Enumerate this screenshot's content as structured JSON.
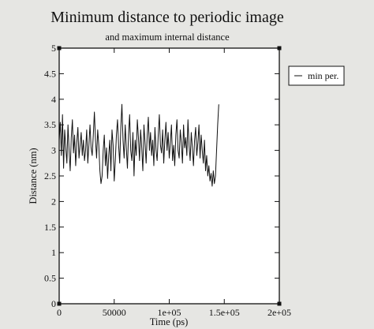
{
  "chart_data": {
    "type": "line",
    "title": "Minimum distance to periodic image",
    "subtitle": "and maximum internal distance",
    "xlabel": "Time (ps)",
    "ylabel": "Distance (nm)",
    "xlim": [
      0,
      200000
    ],
    "ylim": [
      0,
      5
    ],
    "x_ticks": [
      0,
      50000,
      100000,
      150000,
      200000
    ],
    "x_tick_labels": [
      "0",
      "50000",
      "1e+05",
      "1.5e+05",
      "2e+05"
    ],
    "y_ticks": [
      0,
      0.5,
      1,
      1.5,
      2,
      2.5,
      3,
      3.5,
      4,
      4.5,
      5
    ],
    "y_tick_labels": [
      "0",
      "0.5",
      "1",
      "1.5",
      "2",
      "2.5",
      "3",
      "3.5",
      "4",
      "4.5",
      "5"
    ],
    "grid": false,
    "legend_position": "right",
    "series": [
      {
        "name": "min per.",
        "color": "#111111",
        "x_start": 0,
        "x_step": 1000,
        "y": [
          3.2,
          3.55,
          2.9,
          3.7,
          2.65,
          3.4,
          3.05,
          2.75,
          3.5,
          3.0,
          2.6,
          3.25,
          3.6,
          2.95,
          3.3,
          2.7,
          3.15,
          3.45,
          2.85,
          3.1,
          3.35,
          2.9,
          3.2,
          2.8,
          3.0,
          3.4,
          2.75,
          3.1,
          3.5,
          3.05,
          2.9,
          3.3,
          3.75,
          3.2,
          2.85,
          3.4,
          3.1,
          2.6,
          2.35,
          2.5,
          3.0,
          3.3,
          2.7,
          3.05,
          2.45,
          2.9,
          3.2,
          2.6,
          3.4,
          3.1,
          2.4,
          2.8,
          3.3,
          3.6,
          3.1,
          2.75,
          3.45,
          3.9,
          3.2,
          2.85,
          3.5,
          3.05,
          2.65,
          3.3,
          3.7,
          3.0,
          2.8,
          3.35,
          2.5,
          3.2,
          2.9,
          3.6,
          3.25,
          2.8,
          3.4,
          3.05,
          2.6,
          3.5,
          3.15,
          2.75,
          3.3,
          3.65,
          3.0,
          3.35,
          2.9,
          3.2,
          2.7,
          3.45,
          3.0,
          2.8,
          3.3,
          3.7,
          3.1,
          2.95,
          3.4,
          2.75,
          3.2,
          3.55,
          3.0,
          3.35,
          2.85,
          3.15,
          3.5,
          2.8,
          3.1,
          2.7,
          3.3,
          3.6,
          3.0,
          2.85,
          3.4,
          3.15,
          2.75,
          3.5,
          3.05,
          3.25,
          2.9,
          3.6,
          3.1,
          2.8,
          3.35,
          3.05,
          2.7,
          3.2,
          3.45,
          2.9,
          3.15,
          3.5,
          2.85,
          3.3,
          3.0,
          2.75,
          3.2,
          2.6,
          2.9,
          2.5,
          2.7,
          2.4,
          2.55,
          2.3,
          2.6,
          2.35,
          2.5,
          3.0,
          3.5,
          3.9
        ]
      }
    ]
  }
}
